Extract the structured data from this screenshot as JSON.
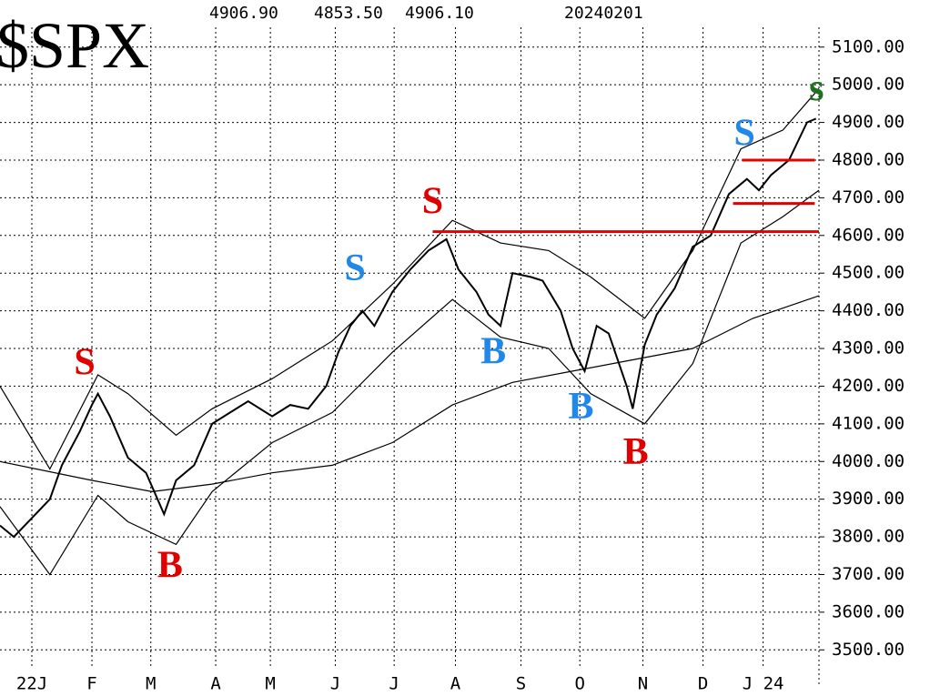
{
  "chart_data": {
    "type": "line",
    "title": "$SPX",
    "header_values": [
      "4906.90",
      "4853.50",
      "4906.10",
      "20240201"
    ],
    "xlim": [
      -0.53,
      13.1
    ],
    "ylim": [
      3450,
      5225
    ],
    "grid": true,
    "xticks": [
      {
        "value": 0,
        "label": "22J"
      },
      {
        "value": 1,
        "label": "F"
      },
      {
        "value": 1.98,
        "label": "M"
      },
      {
        "value": 3.06,
        "label": "A"
      },
      {
        "value": 3.97,
        "label": "M"
      },
      {
        "value": 5.05,
        "label": "J"
      },
      {
        "value": 6.03,
        "label": "J"
      },
      {
        "value": 7.05,
        "label": "A"
      },
      {
        "value": 8.14,
        "label": "S"
      },
      {
        "value": 9.12,
        "label": "O"
      },
      {
        "value": 10.17,
        "label": "N"
      },
      {
        "value": 11.17,
        "label": "D"
      },
      {
        "value": 12.17,
        "label": "J 24"
      }
    ],
    "yticks": [
      {
        "value": 3500,
        "label": "3500.00"
      },
      {
        "value": 3600,
        "label": "3600.00"
      },
      {
        "value": 3700,
        "label": "3700.00"
      },
      {
        "value": 3800,
        "label": "3800.00"
      },
      {
        "value": 3900,
        "label": "3900.00"
      },
      {
        "value": 4000,
        "label": "4000.00"
      },
      {
        "value": 4100,
        "label": "4100.00"
      },
      {
        "value": 4200,
        "label": "4200.00"
      },
      {
        "value": 4300,
        "label": "4300.00"
      },
      {
        "value": 4400,
        "label": "4400.00"
      },
      {
        "value": 4500,
        "label": "4500.00"
      },
      {
        "value": 4600,
        "label": "4600.00"
      },
      {
        "value": 4700,
        "label": "4700.00"
      },
      {
        "value": 4800,
        "label": "4800.00"
      },
      {
        "value": 4900,
        "label": "4900.00"
      },
      {
        "value": 5000,
        "label": "5000.00"
      },
      {
        "value": 5100,
        "label": "5100.00"
      }
    ],
    "series": [
      {
        "color": "#000000",
        "x": [
          -0.53,
          -0.3,
          0,
          0.3,
          0.5,
          0.8,
          1.0,
          1.1,
          1.3,
          1.6,
          1.9,
          2.2,
          2.4,
          2.7,
          3.0,
          3.3,
          3.6,
          4.0,
          4.3,
          4.6,
          4.9,
          5.1,
          5.3,
          5.5,
          5.7,
          6.0,
          6.3,
          6.6,
          6.9,
          7.1,
          7.4,
          7.6,
          7.8,
          8.0,
          8.3,
          8.5,
          8.8,
          9.0,
          9.2,
          9.4,
          9.6,
          9.9,
          10.0,
          10.2,
          10.4,
          10.7,
          11.0,
          11.3,
          11.6,
          11.9,
          12.1,
          12.3,
          12.6,
          12.9,
          13.05
        ],
        "values": [
          3830,
          3800,
          3850,
          3900,
          3990,
          4080,
          4150,
          4180,
          4120,
          4010,
          3970,
          3860,
          3950,
          3990,
          4100,
          4130,
          4160,
          4120,
          4150,
          4140,
          4200,
          4290,
          4360,
          4400,
          4360,
          4450,
          4510,
          4560,
          4590,
          4510,
          4450,
          4390,
          4360,
          4500,
          4490,
          4480,
          4400,
          4300,
          4240,
          4360,
          4340,
          4200,
          4140,
          4310,
          4390,
          4460,
          4570,
          4600,
          4710,
          4750,
          4720,
          4760,
          4800,
          4900,
          4910
        ]
      },
      {
        "color": "#000000",
        "x": [
          -0.53,
          1,
          2,
          3,
          4,
          5,
          6,
          7,
          8,
          9,
          10,
          11,
          12,
          13.1
        ],
        "values": [
          4000,
          3950,
          3920,
          3940,
          3970,
          3990,
          4050,
          4150,
          4210,
          4240,
          4270,
          4300,
          4380,
          4440
        ]
      },
      {
        "color": "#000000",
        "x": [
          -0.53,
          0.3,
          1.1,
          1.6,
          2.4,
          3.0,
          4.0,
          5.0,
          6.0,
          7.0,
          7.8,
          8.6,
          9.3,
          10.2,
          11.0,
          11.8,
          12.5,
          13.1
        ],
        "values": [
          4200,
          3980,
          4230,
          4180,
          4070,
          4140,
          4220,
          4320,
          4470,
          4640,
          4580,
          4560,
          4490,
          4380,
          4560,
          4830,
          4880,
          4990
        ]
      },
      {
        "color": "#000000",
        "x": [
          -0.53,
          0.3,
          1.1,
          1.6,
          2.4,
          3.0,
          4.0,
          5.0,
          6.0,
          7.0,
          7.8,
          8.6,
          9.3,
          10.2,
          11.0,
          11.8,
          12.5,
          13.1
        ],
        "values": [
          3880,
          3700,
          3910,
          3840,
          3780,
          3920,
          4050,
          4130,
          4290,
          4430,
          4330,
          4300,
          4180,
          4100,
          4260,
          4580,
          4650,
          4720
        ]
      }
    ],
    "reference_lines": [
      {
        "color": "#e00000",
        "value": 4610,
        "x": [
          6.67,
          13.1
        ]
      },
      {
        "color": "#e00000",
        "value": 4800,
        "x": [
          11.82,
          13.03
        ]
      },
      {
        "color": "#e00000",
        "value": 4685,
        "x": [
          11.67,
          13.03
        ]
      }
    ],
    "annotations": [
      {
        "text": "S",
        "color": "#e00000",
        "x": 0.88,
        "y": 4254
      },
      {
        "text": "B",
        "color": "#e00000",
        "x": 2.3,
        "y": 3716
      },
      {
        "text": "S",
        "color": "#2288e8",
        "x": 5.38,
        "y": 4505
      },
      {
        "text": "S",
        "color": "#e00000",
        "x": 6.67,
        "y": 4682
      },
      {
        "text": "B",
        "color": "#2288e8",
        "x": 7.68,
        "y": 4283
      },
      {
        "text": "B",
        "color": "#2288e8",
        "x": 9.14,
        "y": 4138
      },
      {
        "text": "B",
        "color": "#e00000",
        "x": 10.05,
        "y": 4017
      },
      {
        "text": "S",
        "color": "#2288e8",
        "x": 11.86,
        "y": 4863
      },
      {
        "text": "s",
        "color": "#207020",
        "x": 13.06,
        "y": 4983
      }
    ]
  }
}
